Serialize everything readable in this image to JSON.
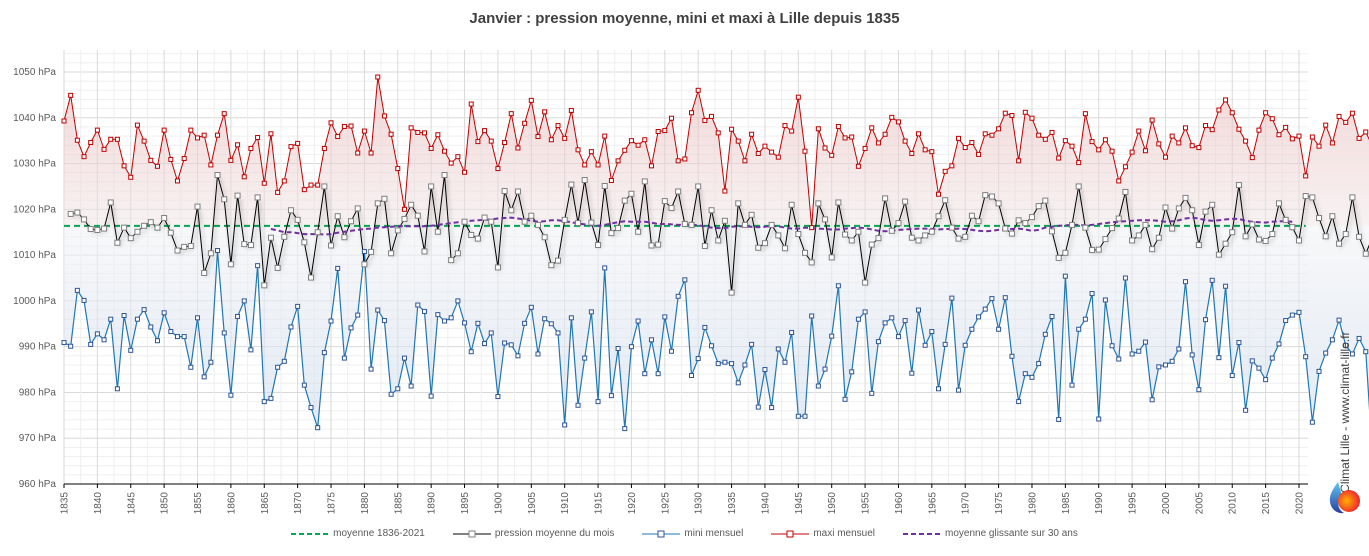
{
  "chart_data": {
    "type": "line",
    "title": "Janvier : pression moyenne, mini et maxi à Lille depuis 1835",
    "xlabel": "",
    "ylabel": "",
    "ylim": [
      960,
      1055
    ],
    "xlim": [
      1835,
      2021
    ],
    "y_unit": "hPa",
    "yticks": [
      "960 hPa",
      "970 hPa",
      "980 hPa",
      "990 hPa",
      "1000 hPa",
      "1010 hPa",
      "1020 hPa",
      "1030 hPa",
      "1040 hPa",
      "1050 hPa"
    ],
    "ytick_values": [
      960,
      970,
      980,
      990,
      1000,
      1010,
      1020,
      1030,
      1040,
      1050
    ],
    "xticks": [
      1835,
      1840,
      1845,
      1850,
      1855,
      1860,
      1865,
      1870,
      1875,
      1880,
      1885,
      1890,
      1895,
      1900,
      1905,
      1910,
      1915,
      1920,
      1925,
      1930,
      1935,
      1940,
      1945,
      1950,
      1955,
      1960,
      1965,
      1970,
      1975,
      1980,
      1985,
      1990,
      1995,
      2000,
      2005,
      2010,
      2015,
      2020
    ],
    "grid": true,
    "legend_position": "bottom",
    "x_start": 1835,
    "series": [
      {
        "name": "maxi mensuel",
        "color": "#c00000",
        "marker": "square",
        "values": [
          1039.3,
          1044.9,
          1035.1,
          1031.5,
          1034.6,
          1037.3,
          1033.1,
          1035.3,
          1035.3,
          1029.5,
          1027.0,
          1038.4,
          1034.9,
          1030.7,
          1029.4,
          1037.3,
          1030.9,
          1026.2,
          1031.1,
          1037.3,
          1035.6,
          1036.2,
          1029.7,
          1036.2,
          1040.9,
          1030.7,
          1034.1,
          1027.1,
          1033.3,
          1035.7,
          1025.7,
          1036.5,
          1023.7,
          1026.2,
          1033.7,
          1034.4,
          1024.3,
          1025.3,
          1025.3,
          1033.3,
          1038.9,
          1035.9,
          1038.1,
          1038.2,
          1032.3,
          1037.1,
          1032.3,
          1048.9,
          1040.4,
          1036.4,
          1028.9,
          1020.0,
          1037.8,
          1036.8,
          1036.7,
          1033.3,
          1036.3,
          1032.7,
          1030.1,
          1031.5,
          1028.1,
          1043.0,
          1034.8,
          1037.2,
          1034.9,
          1028.9,
          1034.6,
          1040.9,
          1033.4,
          1038.8,
          1043.8,
          1035.9,
          1041.3,
          1035.2,
          1038.3,
          1035.5,
          1041.6,
          1033.0,
          1029.7,
          1032.6,
          1029.7,
          1036.0,
          1026.3,
          1030.6,
          1032.9,
          1035.0,
          1034.0,
          1035.2,
          1029.5,
          1037.0,
          1037.2,
          1039.9,
          1030.6,
          1031.0,
          1041.1,
          1046.0,
          1039.4,
          1040.3,
          1036.7,
          1024.0,
          1037.5,
          1034.9,
          1030.6,
          1036.4,
          1032.2,
          1033.8,
          1032.5,
          1031.4,
          1038.3,
          1037.1,
          1044.5,
          1032.7,
          1016.0,
          1037.6,
          1033.4,
          1031.8,
          1038.1,
          1035.6,
          1035.8,
          1029.4,
          1033.3,
          1037.8,
          1034.5,
          1036.4,
          1040.1,
          1039.1,
          1034.9,
          1032.2,
          1036.5,
          1033.0,
          1032.6,
          1023.3,
          1028.3,
          1029.5,
          1035.5,
          1033.5,
          1034.6,
          1032.0,
          1036.5,
          1036.2,
          1037.6,
          1041.0,
          1040.5,
          1030.6,
          1041.2,
          1039.9,
          1036.2,
          1035.3,
          1036.8,
          1031.2,
          1035.0,
          1033.8,
          1030.2,
          1040.9,
          1034.8,
          1033.0,
          1035.2,
          1032.7,
          1026.2,
          1029.3,
          1032.5,
          1037.1,
          1032.8,
          1039.5,
          1034.3,
          1031.4,
          1036.0,
          1034.5,
          1037.8,
          1033.9,
          1033.5,
          1038.3,
          1037.4,
          1041.7,
          1043.9,
          1041.1,
          1037.5,
          1034.9,
          1031.3,
          1037.3,
          1041.1,
          1039.8,
          1036.3,
          1037.9,
          1035.4,
          1036.0,
          1027.3,
          1035.8,
          1033.8,
          1038.4,
          1034.5,
          1040.3,
          1039.0,
          1041.0,
          1035.5,
          1036.9,
          1033.8,
          1029.3,
          1037.6,
          1034.3,
          1040.0,
          1034.9,
          1040.5,
          1046.0,
          1049.0,
          1031.9
        ],
        "fill_to": 1016.4
      },
      {
        "name": "pression moyenne du mois",
        "color": "#000000",
        "marker_color": "#7f7f7f",
        "marker": "square",
        "values": [
          1019.0,
          1019.3,
          1017.8,
          1015.7,
          1015.5,
          1015.8,
          1021.5,
          1012.7,
          1016.0,
          1013.7,
          1015.1,
          1016.4,
          1017.2,
          1016.0,
          1018.1,
          1014.9,
          1011.0,
          1011.8,
          1012.0,
          1020.6,
          1006.1,
          1010.4,
          1027.5,
          1022.2,
          1008.0,
          1023.0,
          1012.4,
          1012.2,
          1022.6,
          1003.4,
          1013.8,
          1007.2,
          1014.0,
          1019.8,
          1017.7,
          1012.8,
          1005.1,
          1015.0,
          1025.0,
          1012.1,
          1018.5,
          1013.9,
          1017.4,
          1020.2,
          1008.0,
          1010.7,
          1021.3,
          1022.3,
          1010.4,
          1015.4,
          1017.9,
          1021.0,
          1018.6,
          1010.8,
          1025.0,
          1015.1,
          1027.5,
          1008.9,
          1010.4,
          1017.3,
          1014.4,
          1013.6,
          1018.2,
          1017.3,
          1007.3,
          1024.0,
          1019.8,
          1023.9,
          1017.3,
          1018.6,
          1016.6,
          1013.9,
          1007.8,
          1008.8,
          1017.7,
          1025.4,
          1017.0,
          1026.4,
          1017.1,
          1012.2,
          1025.1,
          1014.8,
          1015.9,
          1021.9,
          1023.4,
          1015.1,
          1026.1,
          1012.1,
          1012.3,
          1021.8,
          1020.3,
          1023.9,
          1016.8,
          1016.6,
          1025.0,
          1012.0,
          1019.8,
          1013.2,
          1017.5,
          1001.8,
          1021.3,
          1016.6,
          1018.8,
          1011.6,
          1012.6,
          1016.6,
          1014.3,
          1011.5,
          1021.0,
          1014.6,
          1010.5,
          1008.4,
          1021.3,
          1017.8,
          1009.5,
          1021.5,
          1014.5,
          1013.2,
          1015.1,
          1004.0,
          1012.3,
          1013.7,
          1022.4,
          1015.3,
          1017.0,
          1021.7,
          1013.8,
          1013.2,
          1014.3,
          1015.1,
          1018.5,
          1022.0,
          1016.0,
          1013.6,
          1014.0,
          1018.6,
          1017.4,
          1023.1,
          1022.8,
          1021.3,
          1015.8,
          1014.7,
          1017.6,
          1017.0,
          1018.3,
          1020.7,
          1021.9,
          1015.2,
          1009.4,
          1010.5,
          1016.6,
          1025.0,
          1016.0,
          1011.1,
          1011.2,
          1013.5,
          1015.9,
          1018.0,
          1023.8,
          1013.2,
          1014.3,
          1016.6,
          1011.3,
          1013.8,
          1020.4,
          1015.8,
          1020.2,
          1022.5,
          1019.8,
          1012.2,
          1019.5,
          1021.0,
          1010.1,
          1012.5,
          1015.0,
          1025.3,
          1014.1,
          1016.7,
          1013.4,
          1013.1,
          1014.6,
          1021.3,
          1017.7,
          1016.1,
          1013.2,
          1022.9,
          1022.6,
          1018.1,
          1014.1,
          1018.5,
          1012.5,
          1014.6,
          1022.6,
          1014.0,
          1010.3,
          1013.9,
          1012.2,
          1023.5,
          1005.9,
          1015.5,
          1012.1,
          1022.1,
          1014.4,
          1016.6,
          1022.8,
          1012.2
        ],
        "note": "approximate readings; first value at 1836"
      },
      {
        "name": "mini mensuel",
        "color": "#1f77b4",
        "marker_color": "#2e5597",
        "marker": "square",
        "values": [
          990.9,
          990.1,
          1002.3,
          1000.1,
          990.5,
          992.8,
          991.5,
          996.0,
          980.8,
          996.8,
          989.2,
          996.0,
          998.1,
          994.3,
          991.3,
          997.4,
          993.3,
          992.2,
          992.2,
          985.5,
          996.3,
          983.4,
          986.6,
          1011.0,
          993.0,
          979.4,
          996.6,
          1000.0,
          989.3,
          1007.7,
          978.0,
          978.7,
          985.5,
          986.8,
          994.3,
          998.8,
          981.6,
          976.7,
          972.3,
          988.7,
          995.6,
          1007.1,
          987.5,
          994.1,
          996.9,
          1010.8,
          985.1,
          998.0,
          995.7,
          979.6,
          980.8,
          987.5,
          981.4,
          999.1,
          997.7,
          979.2,
          997.0,
          995.6,
          996.3,
          1000.0,
          995.2,
          988.9,
          995.1,
          990.7,
          993.0,
          979.1,
          990.8,
          990.4,
          988.0,
          995.1,
          998.6,
          988.4,
          996.1,
          995.0,
          993.0,
          972.9,
          996.3,
          977.2,
          987.5,
          997.6,
          978.0,
          1007.2,
          979.3,
          989.6,
          972.1,
          990.0,
          995.6,
          984.1,
          991.5,
          984.1,
          996.5,
          989.0,
          1001.0,
          1004.6,
          983.7,
          987.4,
          994.2,
          990.2,
          986.3,
          986.6,
          986.3,
          982.1,
          986.0,
          990.5,
          976.8,
          985.0,
          976.7,
          989.5,
          986.6,
          993.1,
          974.8,
          974.8,
          996.7,
          981.4,
          985.1,
          992.3,
          1003.3,
          978.5,
          984.5,
          996.0,
          997.6,
          979.8,
          991.1,
          995.2,
          996.3,
          992.2,
          995.7,
          984.2,
          998.0,
          990.3,
          993.3,
          980.8,
          990.5,
          1000.6,
          980.5,
          990.3,
          993.8,
          996.5,
          998.2,
          1000.5,
          993.8,
          1000.7,
          987.9,
          978.0,
          984.1,
          983.3,
          986.3,
          992.7,
          996.6,
          974.1,
          1005.4,
          981.6,
          993.8,
          996.0,
          1001.6,
          974.2,
          1000.2,
          990.2,
          987.3,
          1005.0,
          988.4,
          989.0,
          991.0,
          978.4,
          985.6,
          986.0,
          986.8,
          989.5,
          1004.2,
          988.2,
          980.6,
          995.9,
          1004.5,
          987.6,
          1003.2,
          983.7,
          990.9,
          976.1,
          986.9,
          985.3,
          982.8,
          987.5,
          990.6,
          995.7,
          996.9,
          997.5,
          987.8,
          973.5,
          984.6,
          988.6,
          991.5,
          995.8,
          990.3,
          988.4,
          991.8,
          988.9,
          966.5,
          985.5,
          989.1,
          995.6,
          991.3,
          990.6,
          974.4,
          987.3,
          982.6,
          990.4,
          987.0,
          991.9,
          983.1
        ],
        "fill_to": 1016.4,
        "note": "approximate readings"
      },
      {
        "name": "moyenne 1836-2021",
        "color": "#00a651",
        "style": "dashed",
        "value": 1016.4
      },
      {
        "name": "moyenne glissante sur 30 ans",
        "color": "#7030a0",
        "style": "dashed",
        "x_start": 1866,
        "values": [
          1015.7,
          1015.4,
          1015.0,
          1015.0,
          1014.8,
          1014.6,
          1014.6,
          1014.6,
          1014.5,
          1014.6,
          1014.9,
          1015.1,
          1015.3,
          1015.5,
          1015.7,
          1015.8,
          1016.0,
          1016.1,
          1016.2,
          1016.3,
          1016.3,
          1016.3,
          1016.3,
          1016.3,
          1016.4,
          1016.6,
          1016.8,
          1017.0,
          1017.2,
          1017.4,
          1017.5,
          1017.6,
          1017.7,
          1017.8,
          1018.0,
          1018.1,
          1018.2,
          1018.0,
          1017.8,
          1017.5,
          1017.3,
          1017.4,
          1017.6,
          1017.6,
          1017.4,
          1017.2,
          1016.9,
          1016.7,
          1016.5,
          1016.4,
          1016.6,
          1016.9,
          1017.2,
          1017.4,
          1017.3,
          1017.3,
          1017.3,
          1017.1,
          1016.8,
          1016.8,
          1016.7,
          1016.6,
          1016.6,
          1016.7,
          1016.5,
          1016.3,
          1016.0,
          1015.9,
          1015.9,
          1016.2,
          1016.3,
          1016.3,
          1016.2,
          1016.1,
          1016.2,
          1016.4,
          1016.3,
          1016.0,
          1015.8,
          1015.8,
          1016.0,
          1015.9,
          1015.8,
          1015.7,
          1015.6,
          1015.6,
          1015.8,
          1015.9,
          1016.0,
          1015.9,
          1015.6,
          1015.3,
          1015.2,
          1015.3,
          1015.5,
          1015.6,
          1015.7,
          1015.8,
          1015.8,
          1015.7,
          1015.6,
          1015.7,
          1015.7,
          1015.8,
          1015.7,
          1015.5,
          1015.3,
          1015.2,
          1015.3,
          1015.5,
          1015.6,
          1015.7,
          1015.8,
          1015.6,
          1015.3,
          1015.5,
          1016.0,
          1016.2,
          1016.4,
          1016.5,
          1016.6,
          1016.6,
          1016.5,
          1016.6,
          1016.8,
          1017.0,
          1017.2,
          1017.3,
          1017.4,
          1017.5,
          1017.6,
          1017.6,
          1017.6,
          1017.5,
          1017.3,
          1017.4,
          1017.6,
          1018.0,
          1018.2,
          1018.0,
          1017.6,
          1017.5,
          1017.6,
          1017.8,
          1017.9,
          1017.9,
          1017.5,
          1017.3,
          1017.2,
          1017.1,
          1017.3,
          1017.4,
          1017.4,
          1017.3
        ],
        "note": "approximate curve"
      }
    ]
  },
  "legend": [
    {
      "key": "avg",
      "label": "moyenne 1836-2021"
    },
    {
      "key": "mean",
      "label": "pression moyenne du mois"
    },
    {
      "key": "min",
      "label": "mini mensuel"
    },
    {
      "key": "max",
      "label": "maxi mensuel"
    },
    {
      "key": "rolling",
      "label": "moyenne glissante sur 30 ans"
    }
  ],
  "credit": "© Climat Lille - www.climat-lille.fr",
  "logo_icon": "droplet-sun-logo-icon"
}
